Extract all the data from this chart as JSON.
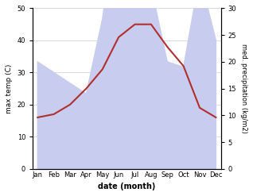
{
  "months": [
    "Jan",
    "Feb",
    "Mar",
    "Apr",
    "May",
    "Jun",
    "Jul",
    "Aug",
    "Sep",
    "Oct",
    "Nov",
    "Dec"
  ],
  "temp": [
    16,
    17,
    20,
    25,
    31,
    41,
    45,
    45,
    38,
    32,
    19,
    16
  ],
  "precip": [
    20,
    18,
    16,
    14,
    28,
    50,
    46,
    34,
    20,
    19,
    36,
    24
  ],
  "temp_color": "#b03030",
  "precip_fill_color": "#c8ccee",
  "temp_ylim": [
    0,
    50
  ],
  "precip_ylim": [
    0,
    30
  ],
  "temp_yticks": [
    0,
    10,
    20,
    30,
    40,
    50
  ],
  "precip_yticks": [
    0,
    5,
    10,
    15,
    20,
    25,
    30
  ],
  "ylabel_left": "max temp (C)",
  "ylabel_right": "med. precipitation (kg/m2)",
  "xlabel": "date (month)",
  "background_color": "#ffffff"
}
